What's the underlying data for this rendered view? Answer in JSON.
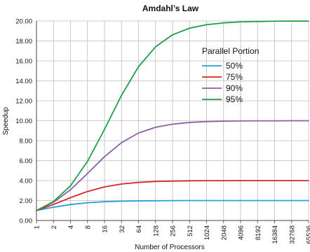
{
  "chart_data": {
    "type": "line",
    "title": "Amdahl’s Law",
    "xlabel": "Number of Processors",
    "ylabel": "Speedup",
    "x_scale": "log2",
    "categories": [
      "1",
      "2",
      "4",
      "8",
      "16",
      "32",
      "64",
      "128",
      "256",
      "512",
      "1024",
      "2048",
      "4096",
      "8192",
      "16384",
      "32768",
      "65536"
    ],
    "ylim": [
      0,
      20
    ],
    "y_ticks": [
      "0.00",
      "2.00",
      "4.00",
      "6.00",
      "8.00",
      "10.00",
      "12.00",
      "14.00",
      "16.00",
      "18.00",
      "20.00"
    ],
    "grid": true,
    "legend": {
      "title": "Parallel Portion",
      "placement": "upper-right"
    },
    "series": [
      {
        "name": "50%",
        "color": "#2aa0d6",
        "values": [
          1.0,
          1.33,
          1.6,
          1.78,
          1.88,
          1.94,
          1.97,
          1.98,
          1.99,
          2.0,
          2.0,
          2.0,
          2.0,
          2.0,
          2.0,
          2.0,
          2.0
        ]
      },
      {
        "name": "75%",
        "color": "#d62728",
        "values": [
          1.0,
          1.6,
          2.29,
          2.91,
          3.37,
          3.66,
          3.82,
          3.91,
          3.95,
          3.98,
          3.99,
          3.99,
          4.0,
          4.0,
          4.0,
          4.0,
          4.0
        ]
      },
      {
        "name": "90%",
        "color": "#8e5ea2",
        "values": [
          1.0,
          1.82,
          3.08,
          4.71,
          6.4,
          7.8,
          8.77,
          9.34,
          9.66,
          9.83,
          9.91,
          9.96,
          9.98,
          9.99,
          9.99,
          10.0,
          10.0
        ]
      },
      {
        "name": "95%",
        "color": "#1f9e4a",
        "values": [
          1.0,
          1.9,
          3.48,
          5.93,
          9.14,
          12.55,
          15.42,
          17.41,
          18.62,
          19.28,
          19.63,
          19.81,
          19.91,
          19.95,
          19.98,
          19.99,
          19.99
        ]
      }
    ]
  }
}
